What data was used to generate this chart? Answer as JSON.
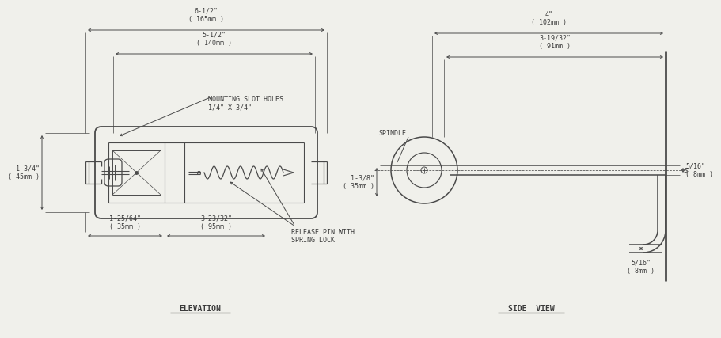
{
  "bg_color": "#f0f0eb",
  "line_color": "#4a4a4a",
  "dim_color": "#4a4a4a",
  "text_color": "#3a3a3a",
  "elevation_label": "ELEVATION",
  "side_view_label": "SIDE  VIEW",
  "elev_dims": {
    "overall_width_label": "6-1/2\"\n( 165mm )",
    "inner_width_label": "5-1/2\"\n( 140mm )",
    "height_label": "1-3/4\"\n( 45mm )",
    "left_offset_label": "1-25/64\"\n( 35mm )",
    "slot_width_label": "3-23/32\"\n( 95mm )",
    "slot_holes_label": "MOUNTING SLOT HOLES\n1/4\" X 3/4\"",
    "release_pin_label": "RELEASE PIN WITH\nSPRING LOCK"
  },
  "side_dims": {
    "top_width_label": "4\"\n( 102mm )",
    "inner_width_label": "3-19/32\"\n( 91mm )",
    "height_label": "1-3/8\"\n( 35mm )",
    "right_top_label": "5/16\"\n( 8mm )",
    "right_bot_label": "5/16\"\n( 8mm )",
    "spindle_label": "SPINDLE"
  },
  "font_size": 6.0,
  "label_font_size": 7.0
}
